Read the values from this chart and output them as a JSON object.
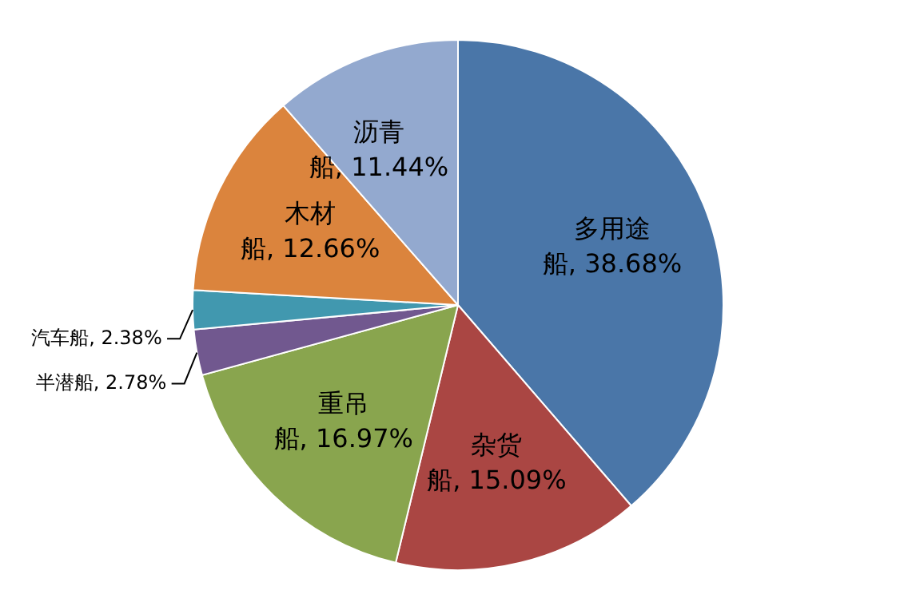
{
  "chart_data": {
    "type": "pie",
    "categories": [
      "多用途船",
      "杂货船",
      "重吊船",
      "半潜船",
      "汽车船",
      "木材船",
      "沥青船"
    ],
    "values": [
      38.68,
      15.09,
      16.97,
      2.78,
      2.38,
      12.66,
      11.44
    ],
    "value_labels": [
      "38.68%",
      "15.09%",
      "16.97%",
      "2.78%",
      "2.38%",
      "12.66%",
      "11.44%"
    ],
    "colors": [
      "#4a76a8",
      "#aa4643",
      "#89a54e",
      "#71588f",
      "#4198af",
      "#db843d",
      "#93a9cf"
    ],
    "legend": false
  }
}
